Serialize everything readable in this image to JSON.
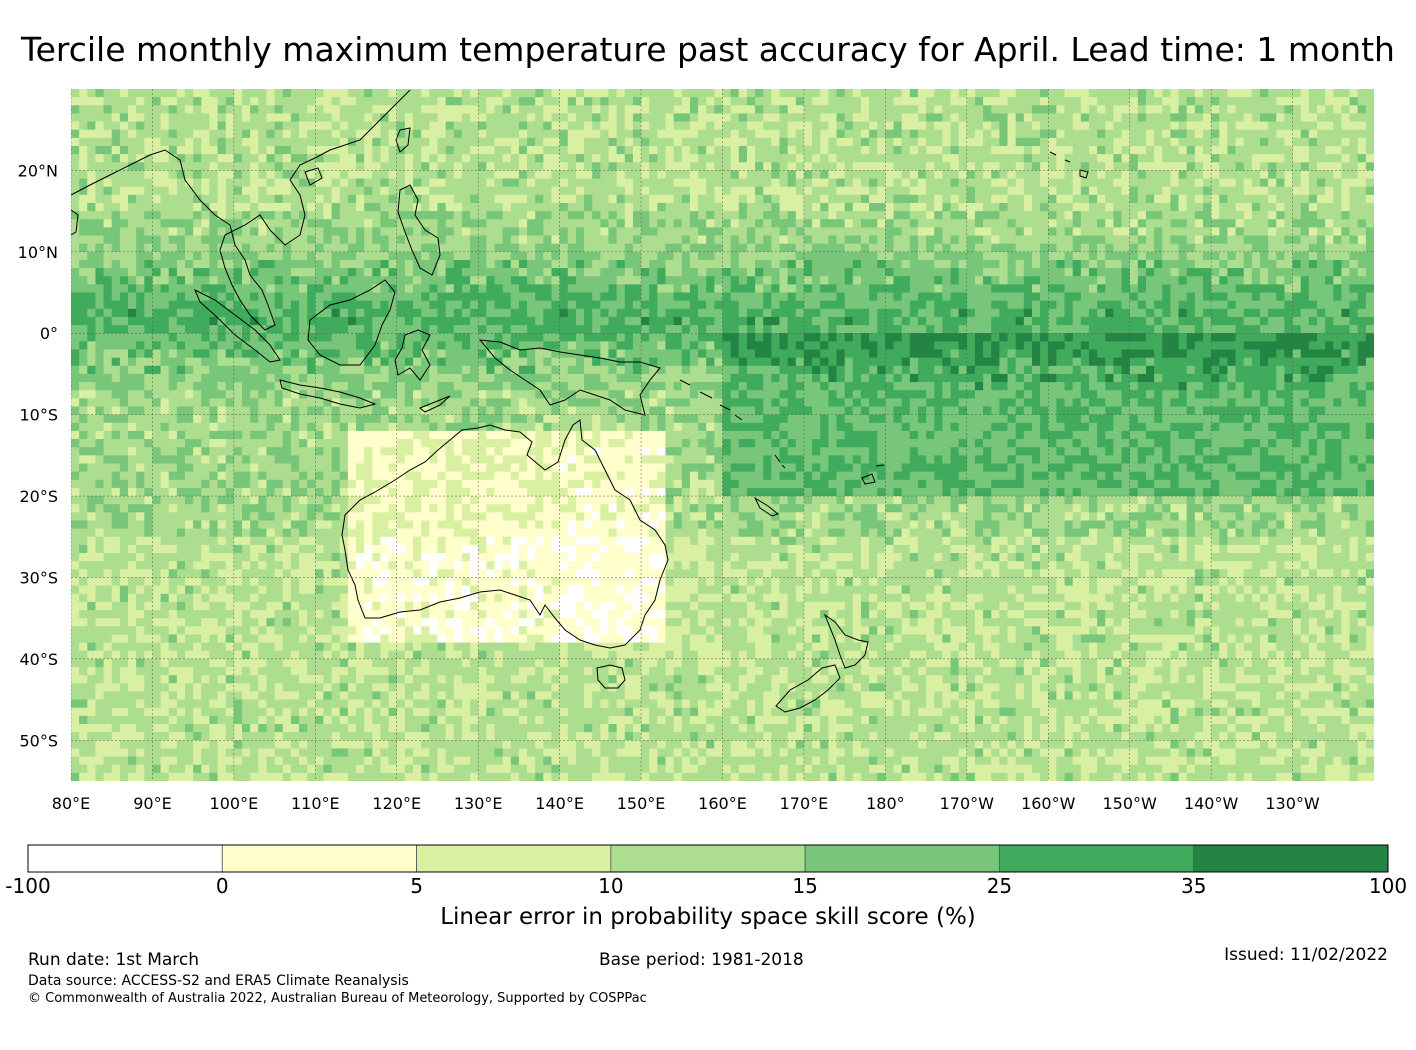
{
  "title": "Tercile monthly maximum temperature past accuracy for April. Lead time: 1 month",
  "map": {
    "lon_labels": [
      "80°E",
      "90°E",
      "100°E",
      "110°E",
      "120°E",
      "130°E",
      "140°E",
      "150°E",
      "160°E",
      "170°E",
      "180°",
      "170°W",
      "160°W",
      "150°W",
      "140°W",
      "130°W"
    ],
    "lat_labels": [
      "20°N",
      "10°N",
      "0°",
      "10°S",
      "20°S",
      "30°S",
      "40°S",
      "50°S"
    ],
    "lat_values": [
      20,
      10,
      0,
      -10,
      -20,
      -30,
      -40,
      -50
    ],
    "lon_values": [
      80,
      90,
      100,
      110,
      120,
      130,
      140,
      150,
      160,
      170,
      180,
      190,
      200,
      210,
      220,
      230
    ],
    "lon_range": [
      80,
      240
    ],
    "lat_range": [
      -55,
      30
    ],
    "land_outline": "black",
    "gridlines": true
  },
  "colorbar": {
    "title": "Linear error in probability space skill score (%)",
    "bounds": [
      "-100",
      "0",
      "5",
      "10",
      "15",
      "25",
      "35",
      "100"
    ],
    "colors": [
      "#ffffff",
      "#ffffcc",
      "#d9f0a3",
      "#addd8e",
      "#78c679",
      "#41ab5d",
      "#238443"
    ]
  },
  "footer": {
    "run_date": "Run date: 1st March",
    "base_period": "Base period: 1981-2018",
    "issued": "Issued: 11/02/2022",
    "data_source": "Data source: ACCESS-S2 and ERA5 Climate Reanalysis",
    "copyright": "© Commonwealth of Australia 2022, Australian Bureau of Meteorology, Supported by COSPPac"
  }
}
